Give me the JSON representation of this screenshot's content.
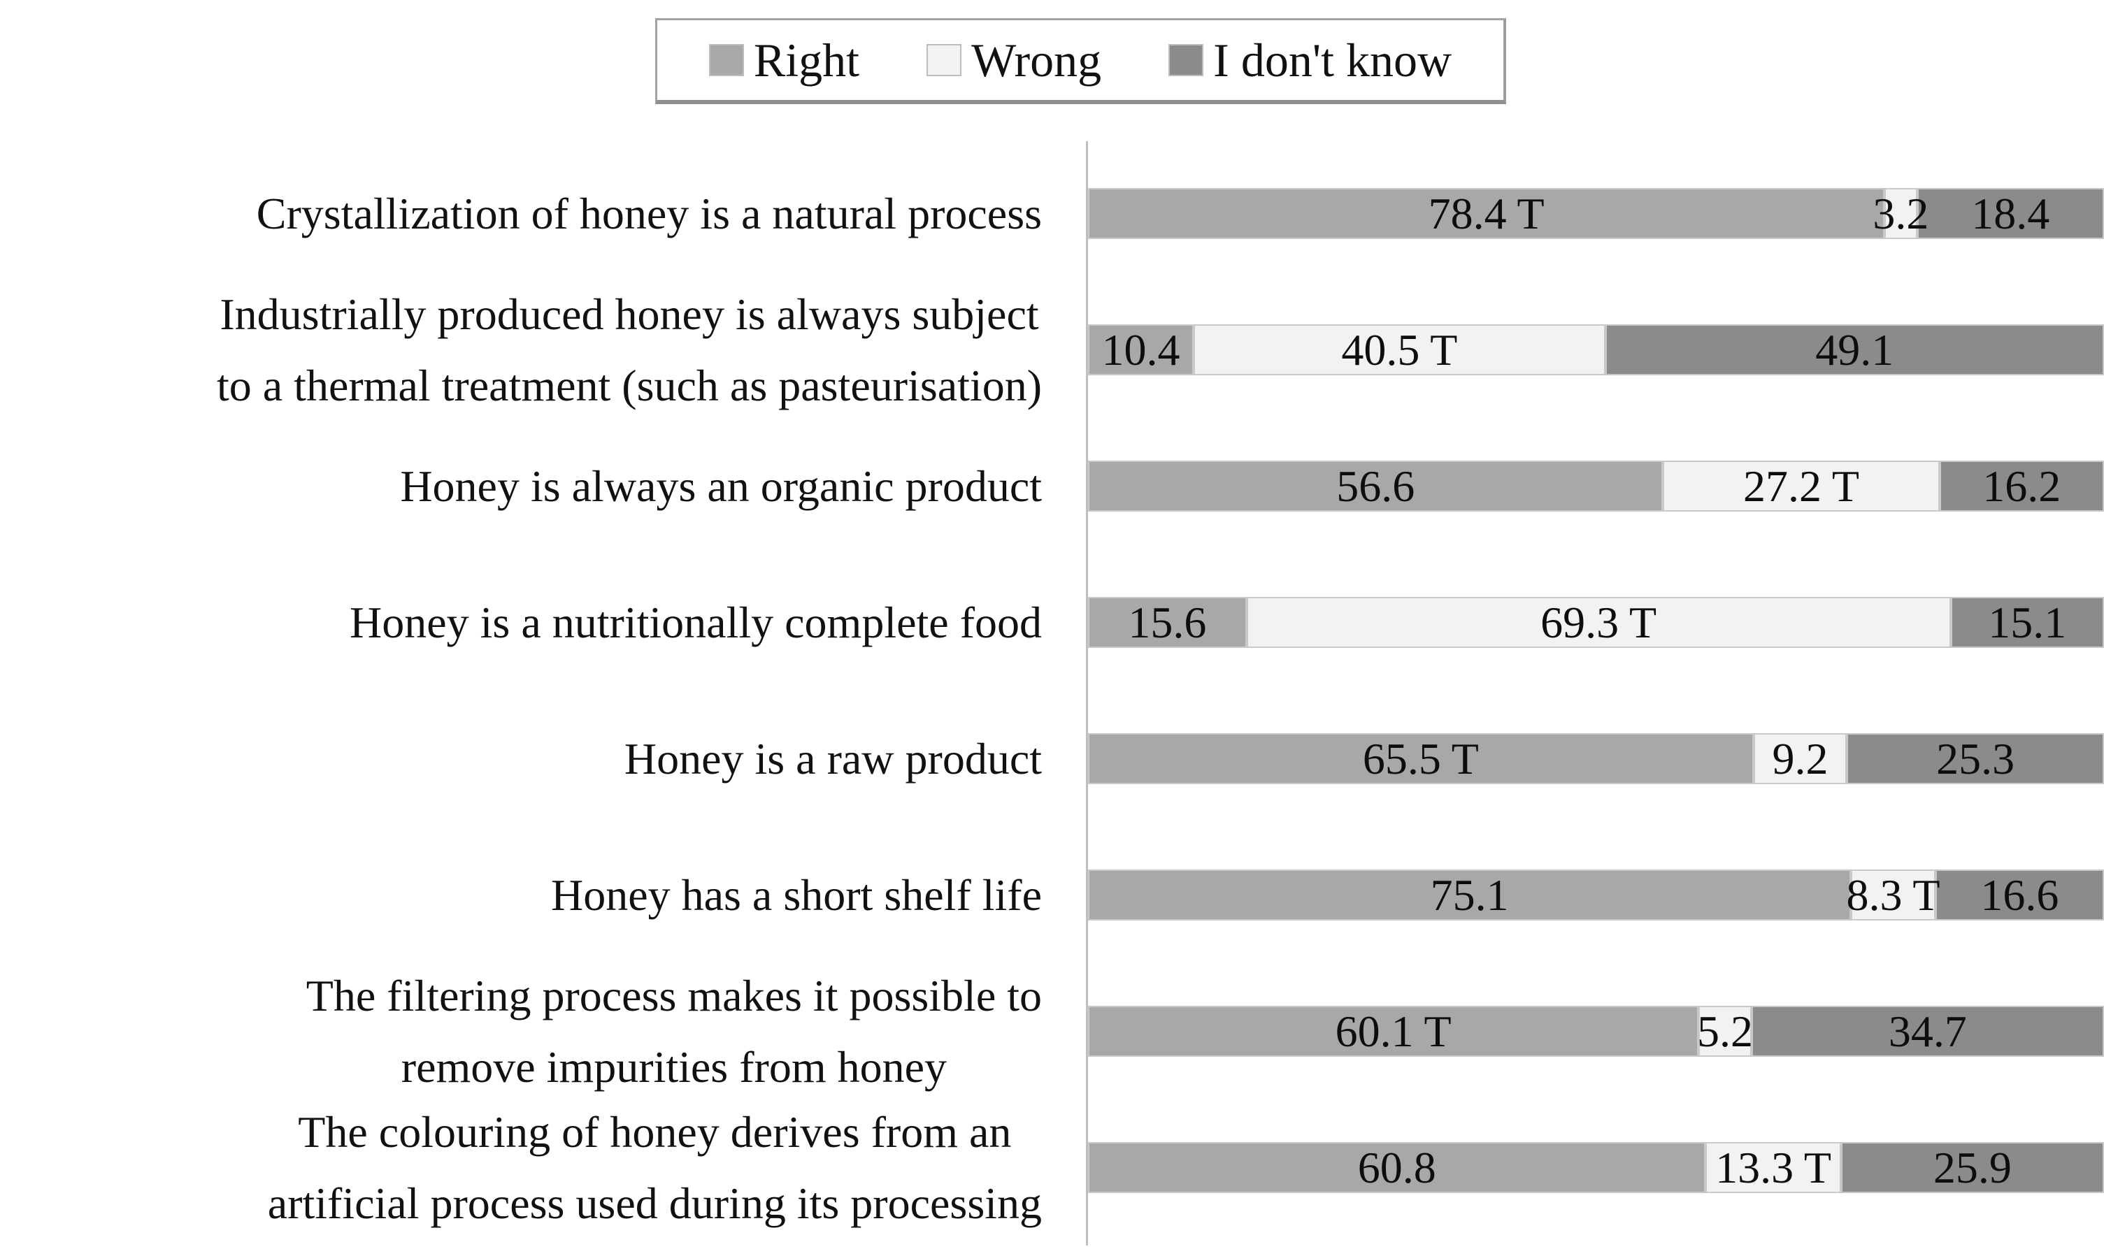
{
  "legend": {
    "items": [
      {
        "label": "Right",
        "color": "#a8a8a8"
      },
      {
        "label": "Wrong",
        "color": "#f2f2f2"
      },
      {
        "label": "I don't know",
        "color": "#8b8b8b"
      }
    ]
  },
  "chart_data": {
    "type": "bar",
    "orientation": "horizontal",
    "stacked": true,
    "unit": "percent",
    "xlim": [
      0,
      100
    ],
    "grid": false,
    "legend_position": "top",
    "true_answer_marker": "T",
    "categories": [
      "Crystallization of honey is a natural process",
      "Industrially produced honey is always subject\nto a thermal treatment (such as pasteurisation)",
      "Honey is always an organic product",
      "Honey is a nutritionally complete food",
      "Honey is a raw product",
      "Honey has a short shelf life",
      "The filtering process makes it possible to\nremove impurities from honey",
      "The colouring of honey derives from an\nartificial process used during its processing"
    ],
    "series": [
      {
        "name": "Right",
        "color": "#a8a8a8",
        "values": [
          78.4,
          10.4,
          56.6,
          15.6,
          65.5,
          75.1,
          60.1,
          60.8
        ]
      },
      {
        "name": "Wrong",
        "color": "#f2f2f2",
        "values": [
          3.2,
          40.5,
          27.2,
          69.3,
          9.2,
          8.3,
          5.2,
          13.3
        ]
      },
      {
        "name": "I don't know",
        "color": "#8b8b8b",
        "values": [
          18.4,
          49.1,
          16.2,
          15.1,
          25.3,
          16.6,
          34.7,
          25.9
        ]
      }
    ],
    "bar_labels": [
      [
        "78.4 T",
        "3.2",
        "18.4"
      ],
      [
        "10.4",
        "40.5 T",
        "49.1"
      ],
      [
        "56.6",
        "27.2 T",
        "16.2"
      ],
      [
        "15.6",
        "69.3 T",
        "15.1"
      ],
      [
        "65.5 T",
        "9.2",
        "25.3"
      ],
      [
        "75.1",
        "8.3 T",
        "16.6"
      ],
      [
        "60.1 T",
        "5.2",
        "34.7"
      ],
      [
        "60.8",
        "13.3 T",
        "25.9"
      ]
    ]
  }
}
